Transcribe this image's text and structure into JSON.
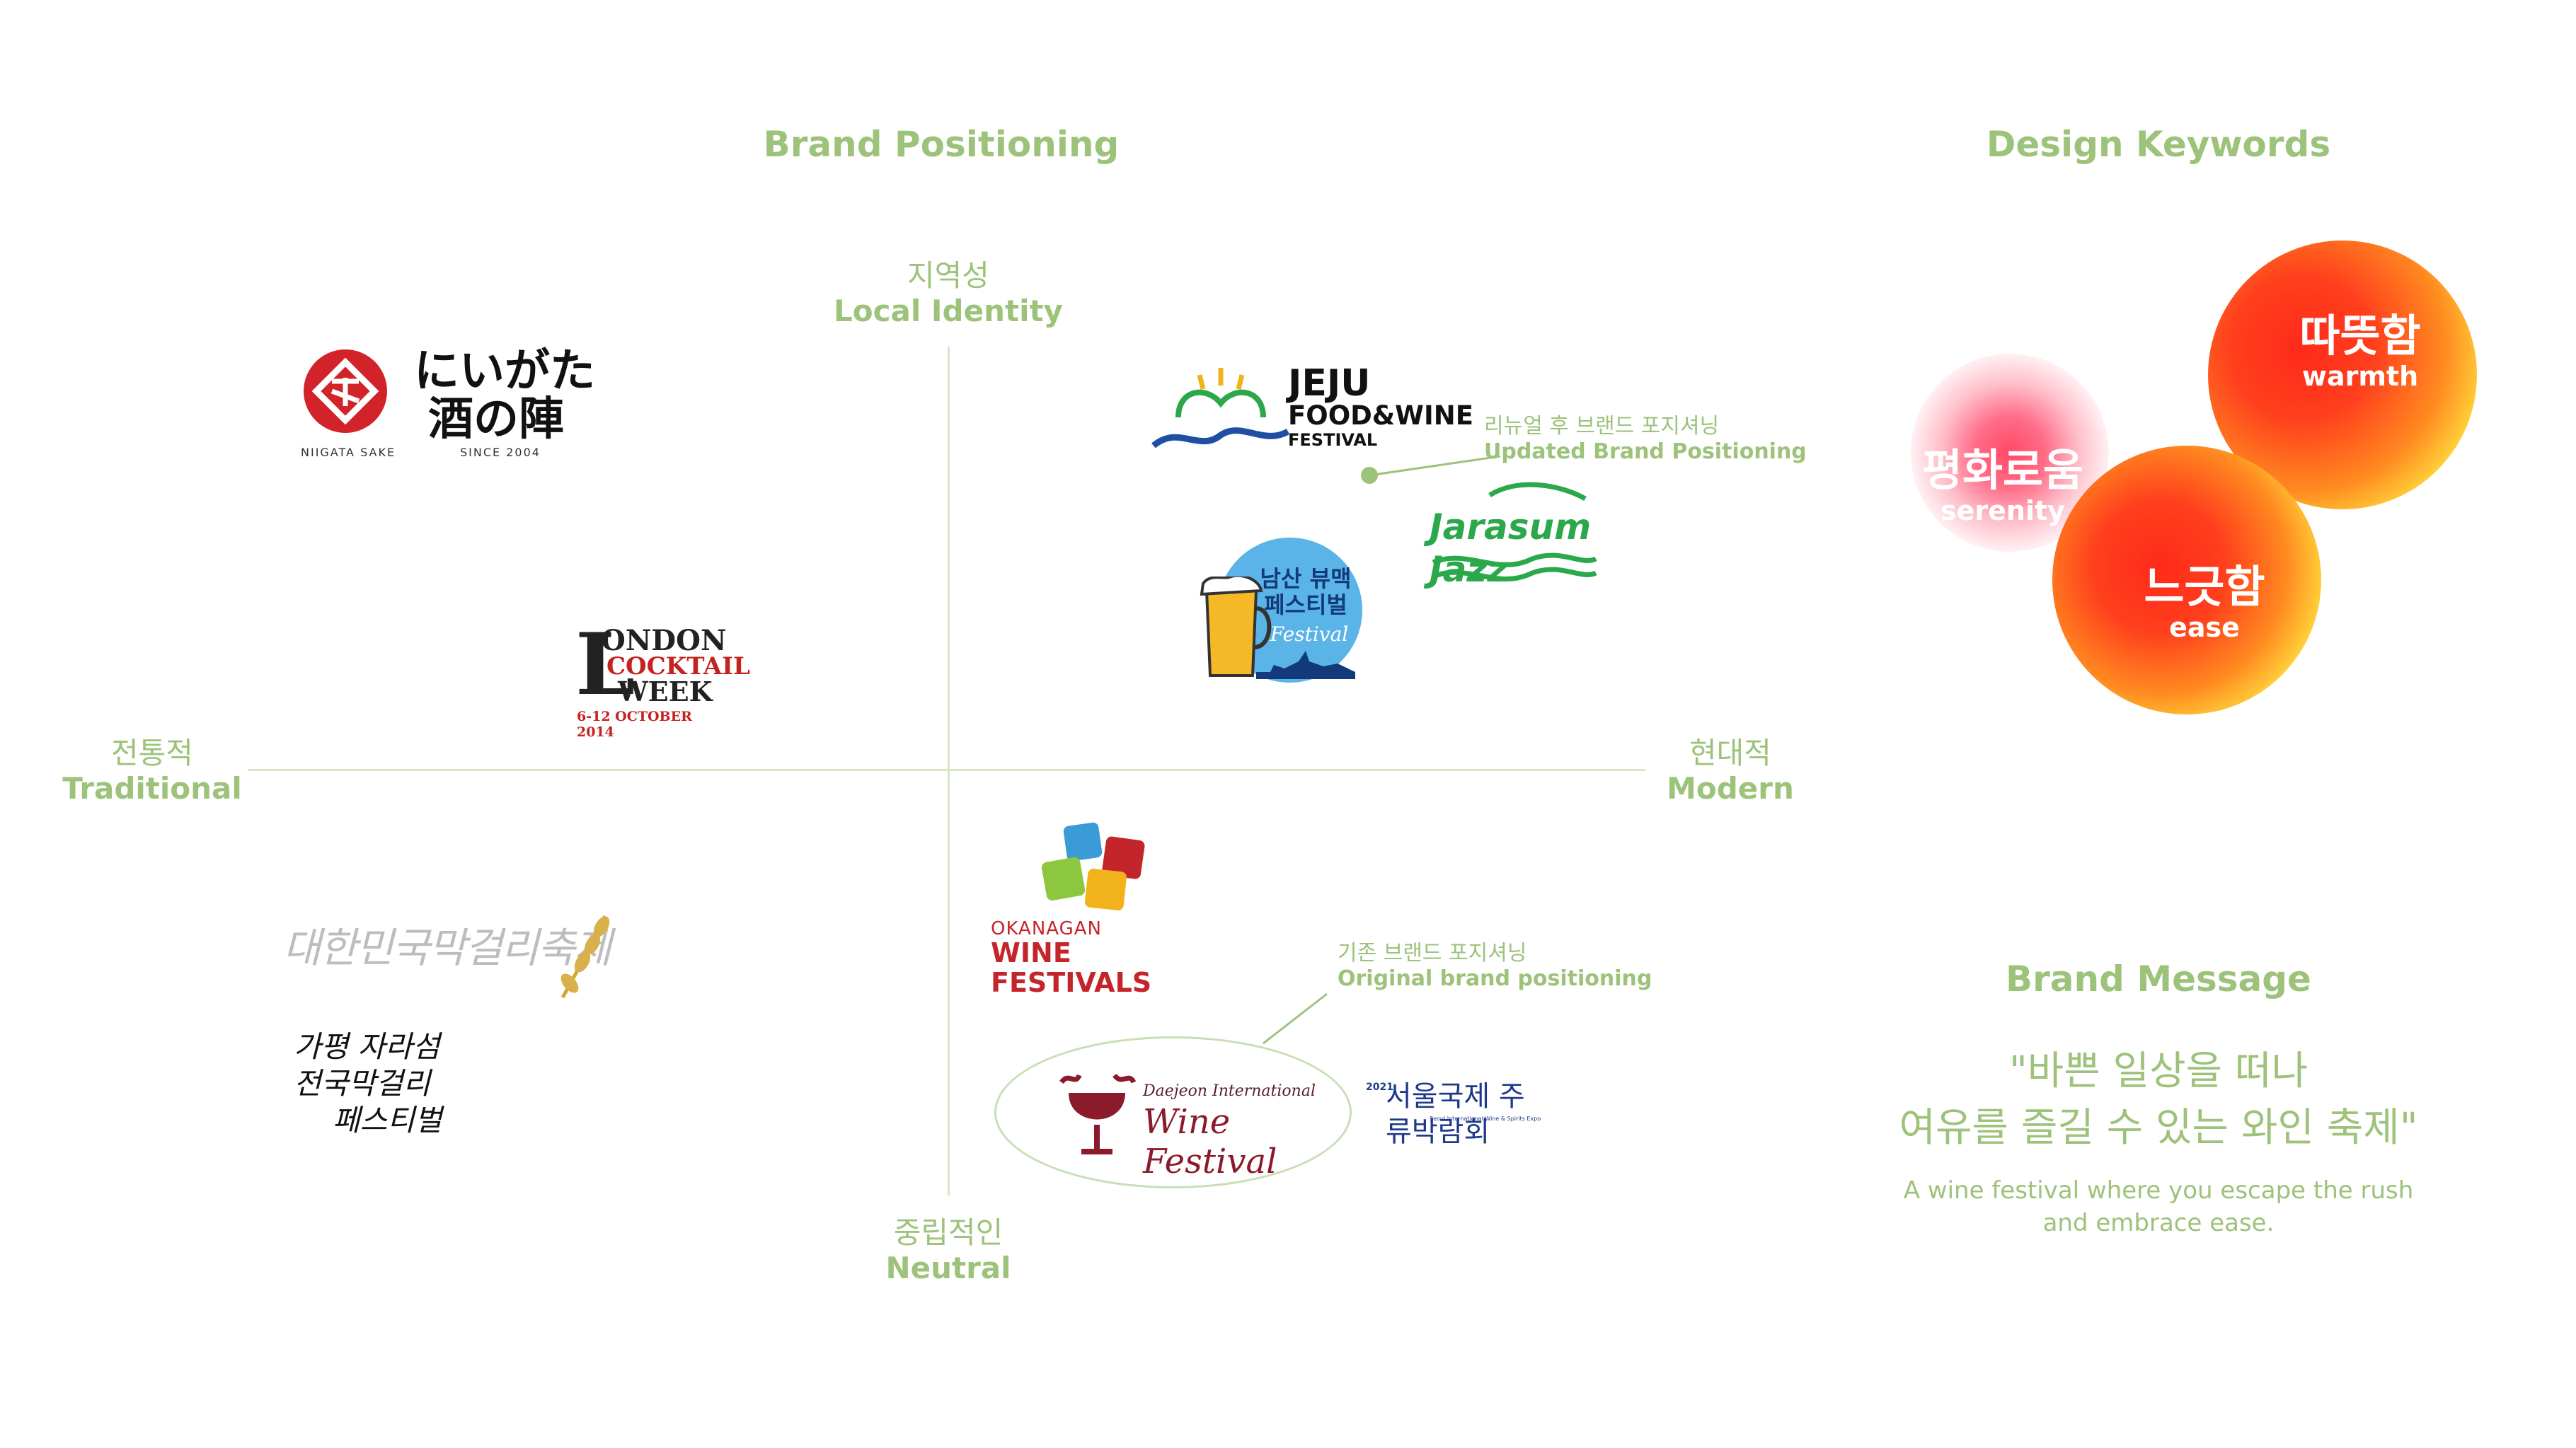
{
  "titles": {
    "positioning": "Brand Positioning",
    "keywords": "Design Keywords",
    "message": "Brand Message"
  },
  "axes": {
    "top": {
      "ko": "지역성",
      "en": "Local Identity"
    },
    "bottom": {
      "ko": "중립적인",
      "en": "Neutral"
    },
    "left": {
      "ko": "전통적",
      "en": "Traditional"
    },
    "right": {
      "ko": "현대적",
      "en": "Modern"
    }
  },
  "annotations": {
    "updated": {
      "ko": "리뉴얼 후 브랜드 포지셔닝",
      "en": "Updated Brand Positioning"
    },
    "original": {
      "ko": "기존 브랜드 포지셔닝",
      "en": "Original brand positioning"
    }
  },
  "logos": {
    "niigata": {
      "jp_line1": "にいがた",
      "jp_line2": "酒の陣",
      "sub_left": "NIIGATA SAKE",
      "sub_right": "SINCE 2004"
    },
    "london": {
      "line1": "ONDON",
      "line2": "COCKTAIL",
      "line3": "WEEK",
      "letter": "L",
      "dates": "6-12 OCTOBER 2014"
    },
    "jeju": {
      "line1": "JEJU",
      "line2": "FOOD&WINE",
      "line3": "FESTIVAL"
    },
    "jarasum": {
      "text": "Jarasum Jazz"
    },
    "namsan": {
      "line1": "남산 뷰맥",
      "line2": "페스티벌",
      "script": "Festival"
    },
    "okanagan": {
      "line1": "OKANAGAN",
      "line2": "WINE FESTIVALS"
    },
    "daejeon": {
      "line1": "Daejeon International",
      "line2": "Wine Festival"
    },
    "seoul": {
      "year": "2021",
      "text": "서울국제 주류박람회",
      "sub": "Seoul International Wine & Spirits Expo"
    },
    "korea_makgeolli": {
      "text": "대한민국막걸리축제"
    },
    "gapyeong": {
      "line1": "가평 자라섬",
      "line2": "전국막걸리",
      "line3": "페스티벌"
    }
  },
  "keywords": [
    {
      "ko": "따뜻함",
      "en": "warmth"
    },
    {
      "ko": "평화로움",
      "en": "serenity"
    },
    {
      "ko": "느긋함",
      "en": "ease"
    }
  ],
  "message": {
    "ko_line1": "\"바쁜 일상을 떠나",
    "ko_line2": "여유를 즐길 수 있는 와인 축제\"",
    "en_line1": "A wine festival where you escape the rush",
    "en_line2": "and embrace ease."
  },
  "colors": {
    "accent": "#9dc27a",
    "axis": "#d7e6c5"
  }
}
